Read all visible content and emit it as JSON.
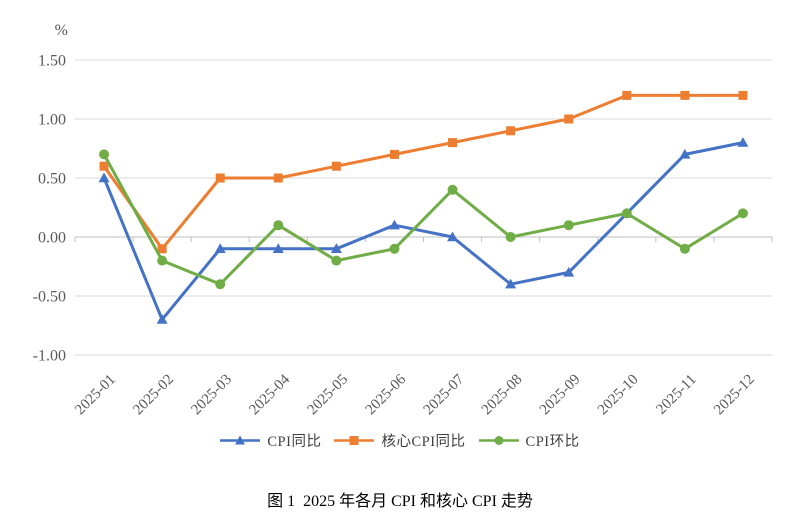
{
  "figure": {
    "caption": "图 1  2025 年各月 CPI 和核心 CPI 走势"
  },
  "colors": {
    "cpi_yoy": "#4472C4",
    "core_cpi_yoy": "#ED7D31",
    "cpi_mom": "#70AD47",
    "gridline": "#D9D9D9",
    "axis_line": "#BFBFBF",
    "axis_text": "#595959",
    "legend_text": "#3F3F3F",
    "caption_text": "#000000"
  },
  "chart_data": {
    "type": "line",
    "title": "图 1  2025 年各月 CPI 和核心 CPI 走势",
    "unit": "%",
    "categories": [
      "2025-01",
      "2025-02",
      "2025-03",
      "2025-04",
      "2025-05",
      "2025-06",
      "2025-07",
      "2025-08",
      "2025-09",
      "2025-10",
      "2025-11",
      "2025-12"
    ],
    "series": [
      {
        "name": "CPI同比",
        "marker": "triangle",
        "color": "#4472C4",
        "values": [
          0.5,
          -0.7,
          -0.1,
          -0.1,
          -0.1,
          0.1,
          0.0,
          -0.4,
          -0.3,
          0.2,
          0.7,
          0.8
        ]
      },
      {
        "name": "核心CPI同比",
        "marker": "square",
        "color": "#ED7D31",
        "values": [
          0.6,
          -0.1,
          0.5,
          0.5,
          0.6,
          0.7,
          0.8,
          0.9,
          1.0,
          1.2,
          1.2,
          1.2
        ]
      },
      {
        "name": "CPI环比",
        "marker": "circle",
        "color": "#70AD47",
        "values": [
          0.7,
          -0.2,
          -0.4,
          0.1,
          -0.2,
          -0.1,
          0.4,
          0.0,
          0.1,
          0.2,
          -0.1,
          0.2
        ]
      }
    ],
    "y_ticks": [
      "1.50",
      "1.00",
      "0.50",
      "0.00",
      "-0.50",
      "-1.00"
    ],
    "ylim": [
      -1.0,
      1.5
    ],
    "grid": true,
    "legend_position": "bottom"
  }
}
